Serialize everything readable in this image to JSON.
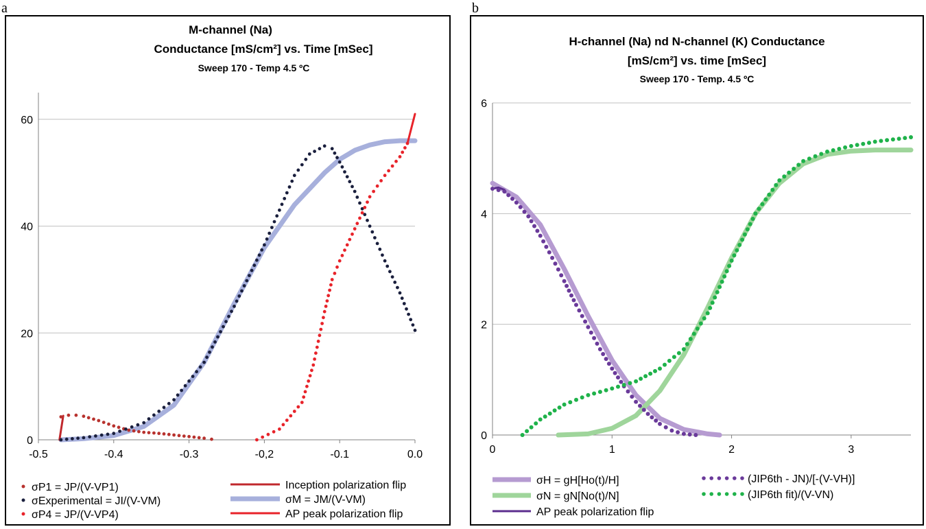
{
  "panel_labels": [
    "a",
    "b"
  ],
  "colors": {
    "p1_red": "#b8322e",
    "experimental": "#1a1f3d",
    "p4_red": "#e8232a",
    "inception": "#c0282d",
    "sigma_m": "#a7b0dc",
    "ap_peak_a": "#e8232a",
    "sigma_h": "#b69bd1",
    "jip_minus_jn": "#6a3a9a",
    "sigma_n": "#9fd59b",
    "jip_fit": "#1fb24a",
    "ap_peak_b": "#5b2d8e"
  },
  "chart_data": [
    {
      "type": "scatter",
      "title_lines": [
        "M-channel (Na)",
        "Conductance [mS/cm²]  vs. Time [mSec]",
        "Sweep 170 - Temp 4.5 ºC"
      ],
      "xlabel": "",
      "ylabel": "",
      "xlim": [
        -0.5,
        0.0
      ],
      "ylim": [
        0,
        65
      ],
      "x_ticks": [
        "-0.5",
        "-0.4",
        "-0.3",
        "-0,2",
        "-0.1",
        "0.0"
      ],
      "x_tick_values": [
        -0.5,
        -0.4,
        -0.3,
        -0.2,
        -0.1,
        0.0
      ],
      "y_ticks": [
        "0",
        "20",
        "40",
        "60"
      ],
      "y_tick_values": [
        0,
        20,
        40,
        60
      ],
      "grid": "horizontal",
      "series": [
        {
          "name": "σP1 = JP/(V-VP1)",
          "style": "dots",
          "color_key": "p1_red",
          "x": [
            -0.47,
            -0.46,
            -0.45,
            -0.44,
            -0.42,
            -0.4,
            -0.38,
            -0.36,
            -0.34,
            -0.32,
            -0.3,
            -0.28,
            -0.27
          ],
          "y": [
            4.3,
            4.6,
            4.6,
            4.4,
            3.6,
            2.6,
            1.8,
            1.4,
            1.2,
            0.9,
            0.6,
            0.3,
            0.1
          ]
        },
        {
          "name": "σExperimental = JI/(V-VM)",
          "style": "dots",
          "color_key": "experimental",
          "x": [
            -0.47,
            -0.44,
            -0.4,
            -0.36,
            -0.32,
            -0.28,
            -0.24,
            -0.2,
            -0.18,
            -0.16,
            -0.14,
            -0.12,
            -0.11,
            -0.1,
            -0.08,
            -0.06,
            -0.04,
            -0.02,
            0.0
          ],
          "y": [
            0,
            0.4,
            1.2,
            3.2,
            7.5,
            14.5,
            25.0,
            36.5,
            43.0,
            49.5,
            53.5,
            55.0,
            54.5,
            52.0,
            46.5,
            40.0,
            33.5,
            27.5,
            20.5
          ]
        },
        {
          "name": "σP4 = JP/(V-VP4)",
          "style": "dots",
          "color_key": "p4_red",
          "x": [
            -0.21,
            -0.18,
            -0.15,
            -0.135,
            -0.12,
            -0.11,
            -0.1,
            -0.09,
            -0.08,
            -0.07,
            -0.06,
            -0.04,
            -0.02,
            -0.01
          ],
          "y": [
            0,
            2.0,
            7.0,
            14.0,
            24.0,
            30.0,
            33.5,
            36.5,
            39.5,
            42.5,
            45.5,
            49.5,
            53.0,
            55.5
          ]
        },
        {
          "name": "Inception polarization flip",
          "style": "line",
          "color_key": "inception",
          "x": [
            -0.472,
            -0.467
          ],
          "y": [
            0,
            4.5
          ]
        },
        {
          "name": "σM = JM/(V-VM)",
          "style": "thick",
          "color_key": "sigma_m",
          "x": [
            -0.47,
            -0.44,
            -0.4,
            -0.36,
            -0.32,
            -0.28,
            -0.24,
            -0.2,
            -0.16,
            -0.12,
            -0.1,
            -0.08,
            -0.06,
            -0.04,
            -0.02,
            0.0
          ],
          "y": [
            0,
            0.2,
            0.8,
            2.5,
            6.5,
            14.5,
            25.5,
            36.0,
            44.0,
            50.0,
            52.5,
            54.2,
            55.2,
            55.8,
            56.0,
            56.0
          ]
        },
        {
          "name": "AP peak polarization flip",
          "style": "line",
          "color_key": "ap_peak_a",
          "x": [
            -0.01,
            0.0
          ],
          "y": [
            55.5,
            61.0
          ]
        }
      ]
    },
    {
      "type": "line",
      "title_lines": [
        "H-channel (Na) nd N-channel (K) Conductance",
        "[mS/cm²]  vs. time [mSec]",
        "Sweep 170 - Temp. 4.5 ºC"
      ],
      "xlabel": "",
      "ylabel": "",
      "xlim": [
        0,
        3.5
      ],
      "ylim": [
        0,
        6
      ],
      "x_ticks": [
        "0",
        "1",
        "2",
        "3"
      ],
      "x_tick_values": [
        0,
        1,
        2,
        3
      ],
      "y_ticks": [
        "0",
        "2",
        "4",
        "6"
      ],
      "y_tick_values": [
        0,
        2,
        4,
        6
      ],
      "grid": "horizontal",
      "series": [
        {
          "name": "σH = gH[Ho(t)/H]",
          "style": "thick",
          "color_key": "sigma_h",
          "x": [
            0,
            0.2,
            0.4,
            0.6,
            0.8,
            1.0,
            1.2,
            1.4,
            1.6,
            1.8,
            1.9
          ],
          "y": [
            4.55,
            4.3,
            3.8,
            3.0,
            2.15,
            1.35,
            0.72,
            0.3,
            0.1,
            0.02,
            0
          ]
        },
        {
          "name": "(JIP6th - JN)/[-(V-VH)]",
          "style": "dots",
          "color_key": "jip_minus_jn",
          "x": [
            0,
            0.1,
            0.2,
            0.3,
            0.4,
            0.5,
            0.6,
            0.7,
            0.8,
            0.9,
            1.0,
            1.1,
            1.2,
            1.3,
            1.4,
            1.5,
            1.6,
            1.7
          ],
          "y": [
            4.45,
            4.4,
            4.2,
            3.95,
            3.6,
            3.2,
            2.78,
            2.35,
            1.95,
            1.55,
            1.2,
            0.88,
            0.6,
            0.38,
            0.2,
            0.08,
            0.02,
            0
          ]
        },
        {
          "name": "σN = gN[No(t)/N]",
          "style": "thick",
          "color_key": "sigma_n",
          "x": [
            0.55,
            0.8,
            1.0,
            1.2,
            1.4,
            1.6,
            1.8,
            2.0,
            2.2,
            2.4,
            2.6,
            2.8,
            3.0,
            3.2,
            3.5
          ],
          "y": [
            0,
            0.02,
            0.12,
            0.35,
            0.8,
            1.45,
            2.3,
            3.2,
            4.0,
            4.55,
            4.9,
            5.07,
            5.13,
            5.15,
            5.15
          ]
        },
        {
          "name": "(JIP6th fit)/(V-VN)",
          "style": "dots",
          "color_key": "jip_fit",
          "x": [
            0.25,
            0.4,
            0.6,
            0.8,
            1.0,
            1.2,
            1.4,
            1.6,
            1.8,
            2.0,
            2.2,
            2.4,
            2.6,
            2.8,
            3.0,
            3.2,
            3.5
          ],
          "y": [
            0,
            0.28,
            0.55,
            0.72,
            0.84,
            0.97,
            1.2,
            1.55,
            2.2,
            3.15,
            4.0,
            4.6,
            4.95,
            5.12,
            5.22,
            5.3,
            5.38
          ]
        },
        {
          "name": "AP  peak polarization flip",
          "style": "line",
          "color_key": "ap_peak_b",
          "x": [
            0,
            0.05,
            0.1
          ],
          "y": [
            4.45,
            4.47,
            4.43
          ]
        }
      ]
    }
  ],
  "legend_a": {
    "col1": [
      {
        "swatch": "dots",
        "color_key": "p1_red",
        "label": "σP1 = JP/(V-VP1)"
      },
      {
        "swatch": "dots",
        "color_key": "experimental",
        "label": "σExperimental = JI/(V-VM)"
      },
      {
        "swatch": "dots",
        "color_key": "p4_red",
        "label": "σP4 = JP/(V-VP4)"
      }
    ],
    "col2": [
      {
        "swatch": "line",
        "color_key": "inception",
        "label": "Inception polarization flip"
      },
      {
        "swatch": "thick",
        "color_key": "sigma_m",
        "label": "σM = JM/(V-VM)"
      },
      {
        "swatch": "line",
        "color_key": "ap_peak_a",
        "label": "AP peak polarization flip"
      }
    ]
  },
  "legend_b": {
    "col1": [
      {
        "swatch": "thick",
        "color_key": "sigma_h",
        "label": "σH = gH[Ho(t)/H]"
      },
      {
        "swatch": "thick",
        "color_key": "sigma_n",
        "label": "σN = gN[No(t)/N]"
      },
      {
        "swatch": "line",
        "color_key": "ap_peak_b",
        "label": "AP  peak polarization flip"
      }
    ],
    "col2": [
      {
        "swatch": "dots",
        "color_key": "jip_minus_jn",
        "label": "(JIP6th - JN)/[-(V-VH)]"
      },
      {
        "swatch": "dots",
        "color_key": "jip_fit",
        "label": "(JIP6th fit)/(V-VN)"
      }
    ]
  }
}
